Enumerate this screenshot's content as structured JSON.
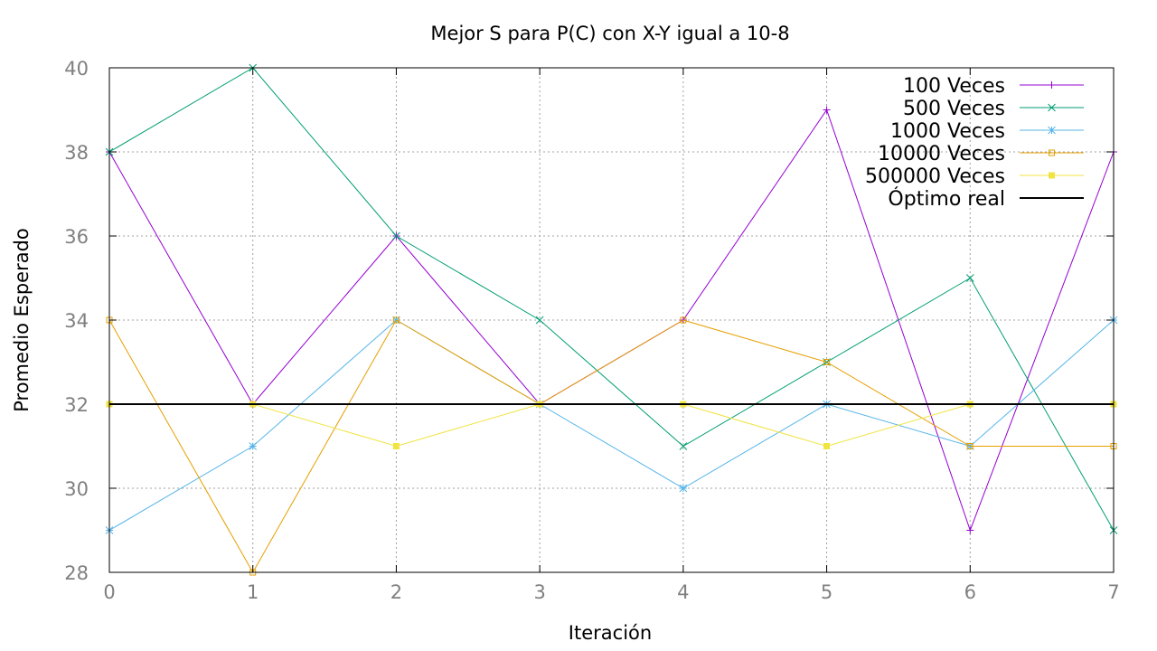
{
  "chart_data": {
    "type": "line",
    "title": "Mejor S para P(C) con X-Y igual a 10-8",
    "xlabel": "Iteración",
    "ylabel": "Promedio Esperado",
    "x": [
      0,
      1,
      2,
      3,
      4,
      5,
      6,
      7
    ],
    "xlim": [
      0,
      7
    ],
    "ylim": [
      28,
      40
    ],
    "xticks": [
      "0",
      "1",
      "2",
      "3",
      "4",
      "5",
      "6",
      "7"
    ],
    "yticks": [
      "28",
      "30",
      "32",
      "34",
      "36",
      "38",
      "40"
    ],
    "grid": true,
    "legend_position": "top-right",
    "series": [
      {
        "name": "100 Veces",
        "color": "#9400d3",
        "marker": "plus",
        "values": [
          38,
          32,
          36,
          32,
          34,
          39,
          29,
          38
        ]
      },
      {
        "name": "500 Veces",
        "color": "#009e73",
        "marker": "cross",
        "values": [
          38,
          40,
          36,
          34,
          31,
          33,
          35,
          29
        ]
      },
      {
        "name": "1000 Veces",
        "color": "#56b4e9",
        "marker": "star",
        "values": [
          29,
          31,
          34,
          32,
          30,
          32,
          31,
          34
        ]
      },
      {
        "name": "10000 Veces",
        "color": "#e69f00",
        "marker": "square-open",
        "values": [
          34,
          28,
          34,
          32,
          34,
          33,
          31,
          31
        ]
      },
      {
        "name": "500000 Veces",
        "color": "#f0e442",
        "marker": "square-filled",
        "values": [
          32,
          32,
          31,
          32,
          32,
          31,
          32,
          32
        ]
      },
      {
        "name": "Óptimo real",
        "color": "#000000",
        "marker": "none",
        "values": [
          32,
          32,
          32,
          32,
          32,
          32,
          32,
          32
        ]
      }
    ]
  }
}
